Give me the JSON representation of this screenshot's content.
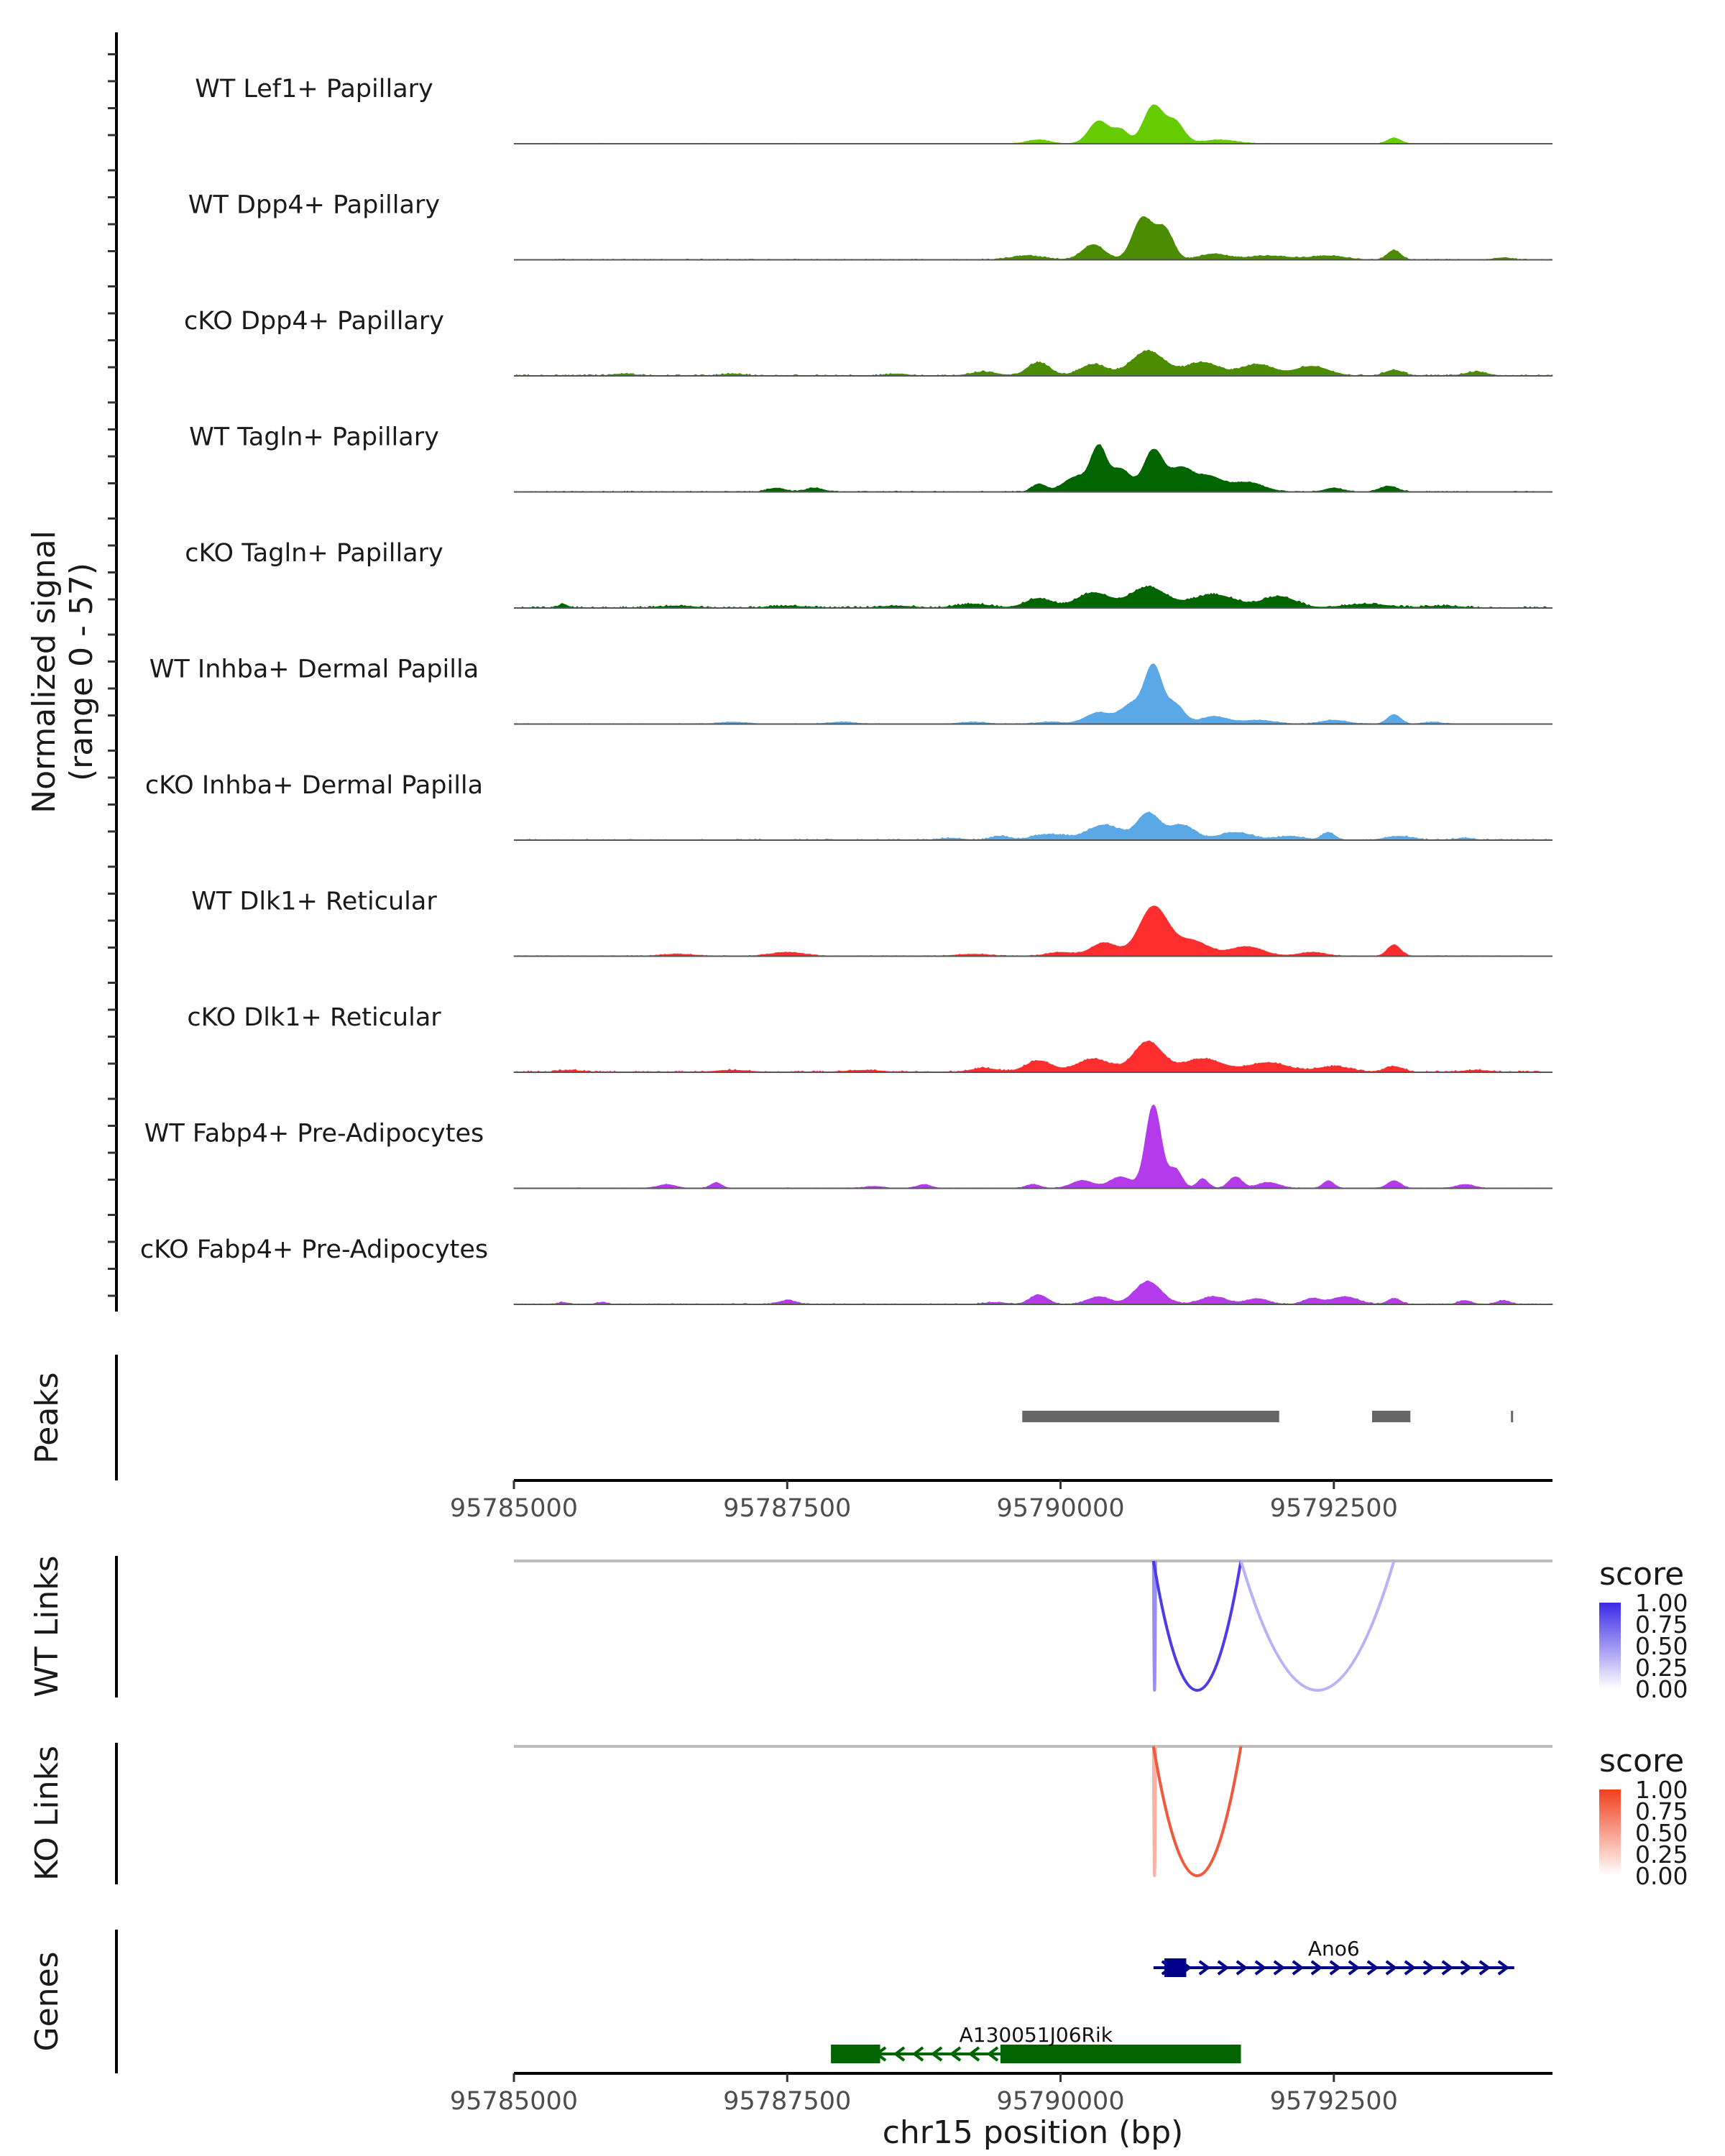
{
  "colors": {
    "Lef1": "#66CC00",
    "Dpp4": "#4C8C00",
    "Tagln": "#006400",
    "Inhba": "#5BA8E6",
    "Dlk1": "#FF2E2E",
    "Fabp4": "#B33BEB",
    "peak": "#666666",
    "wt_link": "#3B2AE6",
    "ko_link": "#F0401E",
    "gene_ano6": "#00008B",
    "gene_rik": "#006400"
  },
  "chart_data": {
    "type": "area",
    "title": "",
    "ylabel": "Normalized signal",
    "ylabel_range": "(range 0 - 57)",
    "xlabel": "chr15 position (bp)",
    "xlim": [
      95785000,
      95794500
    ],
    "ylim": [
      0,
      57
    ],
    "x_ticks": [
      95785000,
      95787500,
      95790000,
      95792500
    ],
    "tracks": [
      {
        "name": "WT Lef1+ Papillary",
        "color_key": "Lef1",
        "noise": 0.25,
        "peaks": [
          [
            95789800,
            2,
            100
          ],
          [
            95790350,
            12,
            90
          ],
          [
            95790550,
            7,
            70
          ],
          [
            95790850,
            20,
            90
          ],
          [
            95791050,
            11,
            80
          ],
          [
            95791450,
            2,
            150
          ],
          [
            95793050,
            3,
            60
          ]
        ]
      },
      {
        "name": "WT Dpp4+ Papillary",
        "color_key": "Dpp4",
        "noise": 0.5,
        "peaks": [
          [
            95789700,
            2,
            150
          ],
          [
            95790300,
            8,
            100
          ],
          [
            95790750,
            22,
            90
          ],
          [
            95790950,
            16,
            80
          ],
          [
            95791400,
            3,
            120
          ],
          [
            95791900,
            2,
            200
          ],
          [
            95792450,
            2,
            150
          ],
          [
            95793050,
            5,
            60
          ],
          [
            95794050,
            1,
            80
          ]
        ]
      },
      {
        "name": "cKO Dpp4+ Papillary",
        "color_key": "Dpp4",
        "noise": 0.8,
        "peaks": [
          [
            95786000,
            1,
            100
          ],
          [
            95787000,
            1,
            100
          ],
          [
            95788500,
            1,
            100
          ],
          [
            95789300,
            2,
            120
          ],
          [
            95789800,
            7,
            100
          ],
          [
            95790300,
            6,
            120
          ],
          [
            95790800,
            13,
            150
          ],
          [
            95791300,
            7,
            150
          ],
          [
            95791800,
            6,
            150
          ],
          [
            95792300,
            5,
            150
          ],
          [
            95793050,
            3,
            80
          ],
          [
            95793800,
            2,
            100
          ]
        ]
      },
      {
        "name": "WT Tagln+ Papillary",
        "color_key": "Tagln",
        "noise": 0.5,
        "peaks": [
          [
            95787400,
            2,
            80
          ],
          [
            95787750,
            2,
            80
          ],
          [
            95789800,
            4,
            60
          ],
          [
            95790150,
            8,
            120
          ],
          [
            95790350,
            22,
            70
          ],
          [
            95790550,
            12,
            90
          ],
          [
            95790850,
            22,
            90
          ],
          [
            95791100,
            12,
            100
          ],
          [
            95791350,
            8,
            120
          ],
          [
            95791700,
            5,
            150
          ],
          [
            95792500,
            2,
            80
          ],
          [
            95793000,
            3,
            80
          ]
        ]
      },
      {
        "name": "cKO Tagln+ Papillary",
        "color_key": "Tagln",
        "noise": 0.9,
        "peaks": [
          [
            95785450,
            2,
            40
          ],
          [
            95786500,
            1,
            150
          ],
          [
            95787500,
            1,
            150
          ],
          [
            95788500,
            1,
            150
          ],
          [
            95789200,
            2,
            150
          ],
          [
            95789800,
            5,
            120
          ],
          [
            95790300,
            8,
            150
          ],
          [
            95790800,
            11,
            160
          ],
          [
            95791400,
            7,
            200
          ],
          [
            95792000,
            6,
            150
          ],
          [
            95792800,
            2,
            200
          ],
          [
            95793500,
            1,
            150
          ]
        ]
      },
      {
        "name": "WT Inhba+ Dermal Papilla",
        "color_key": "Inhba",
        "noise": 0.35,
        "peaks": [
          [
            95787000,
            1,
            120
          ],
          [
            95788000,
            1,
            120
          ],
          [
            95789200,
            1,
            120
          ],
          [
            95789900,
            1,
            120
          ],
          [
            95790350,
            6,
            120
          ],
          [
            95790650,
            10,
            100
          ],
          [
            95790850,
            30,
            80
          ],
          [
            95791050,
            10,
            80
          ],
          [
            95791400,
            4,
            120
          ],
          [
            95791800,
            2,
            150
          ],
          [
            95792500,
            2,
            120
          ],
          [
            95793050,
            5,
            60
          ],
          [
            95793400,
            1,
            80
          ]
        ]
      },
      {
        "name": "cKO Inhba+ Dermal Papilla",
        "color_key": "Inhba",
        "noise": 0.7,
        "peaks": [
          [
            95789000,
            1,
            100
          ],
          [
            95789450,
            2,
            80
          ],
          [
            95789900,
            3,
            150
          ],
          [
            95790400,
            8,
            150
          ],
          [
            95790800,
            14,
            100
          ],
          [
            95791100,
            8,
            120
          ],
          [
            95791600,
            4,
            150
          ],
          [
            95792100,
            2,
            120
          ],
          [
            95792450,
            4,
            60
          ],
          [
            95793100,
            2,
            120
          ],
          [
            95793700,
            1,
            80
          ]
        ]
      },
      {
        "name": "WT Dlk1+ Reticular",
        "color_key": "Dlk1",
        "noise": 0.4,
        "peaks": [
          [
            95786500,
            1,
            150
          ],
          [
            95787500,
            2,
            150
          ],
          [
            95789200,
            1,
            150
          ],
          [
            95790000,
            2,
            120
          ],
          [
            95790400,
            7,
            120
          ],
          [
            95790850,
            26,
            130
          ],
          [
            95791200,
            8,
            150
          ],
          [
            95791700,
            5,
            150
          ],
          [
            95792300,
            2,
            120
          ],
          [
            95793050,
            6,
            60
          ]
        ]
      },
      {
        "name": "cKO Dlk1+ Reticular",
        "color_key": "Dlk1",
        "noise": 0.8,
        "peaks": [
          [
            95785500,
            1,
            100
          ],
          [
            95787000,
            1,
            150
          ],
          [
            95788200,
            1,
            150
          ],
          [
            95789300,
            2,
            120
          ],
          [
            95789800,
            6,
            120
          ],
          [
            95790300,
            7,
            150
          ],
          [
            95790800,
            16,
            130
          ],
          [
            95791300,
            7,
            180
          ],
          [
            95791900,
            5,
            180
          ],
          [
            95792500,
            3,
            150
          ],
          [
            95793050,
            3,
            80
          ],
          [
            95793800,
            1,
            120
          ]
        ]
      },
      {
        "name": "WT Fabp4+ Pre-Adipocytes",
        "color_key": "Fabp4",
        "noise": 0.3,
        "peaks": [
          [
            95786400,
            2,
            80
          ],
          [
            95786850,
            3,
            50
          ],
          [
            95788300,
            1,
            80
          ],
          [
            95788750,
            2,
            60
          ],
          [
            95789750,
            2,
            60
          ],
          [
            95790200,
            4,
            100
          ],
          [
            95790550,
            6,
            100
          ],
          [
            95790850,
            44,
            70
          ],
          [
            95791050,
            10,
            60
          ],
          [
            95791300,
            5,
            50
          ],
          [
            95791600,
            6,
            60
          ],
          [
            95791900,
            3,
            100
          ],
          [
            95792450,
            4,
            50
          ],
          [
            95793050,
            4,
            60
          ],
          [
            95793700,
            2,
            80
          ]
        ]
      },
      {
        "name": "cKO Fabp4+ Pre-Adipocytes",
        "color_key": "Fabp4",
        "noise": 0.5,
        "peaks": [
          [
            95785450,
            1,
            40
          ],
          [
            95785800,
            1,
            50
          ],
          [
            95787500,
            2,
            80
          ],
          [
            95789400,
            1,
            100
          ],
          [
            95789800,
            5,
            80
          ],
          [
            95790350,
            4,
            100
          ],
          [
            95790800,
            12,
            120
          ],
          [
            95791400,
            4,
            120
          ],
          [
            95791800,
            3,
            100
          ],
          [
            95792300,
            3,
            80
          ],
          [
            95792600,
            4,
            120
          ],
          [
            95793050,
            3,
            60
          ],
          [
            95793700,
            2,
            60
          ],
          [
            95794050,
            2,
            60
          ]
        ]
      }
    ],
    "peaks_track": {
      "label": "Peaks",
      "regions": [
        [
          95789650,
          95792000
        ],
        [
          95792850,
          95793200
        ],
        [
          95794120,
          95794135
        ]
      ]
    },
    "wt_links": {
      "label": "WT Links",
      "legend_title": "score",
      "legend_ticks": [
        "1.00",
        "0.75",
        "0.50",
        "0.25",
        "0.00"
      ],
      "links": [
        {
          "start": 95790850,
          "end": 95790870,
          "score": 0.45
        },
        {
          "start": 95790850,
          "end": 95791650,
          "score": 0.9
        },
        {
          "start": 95791650,
          "end": 95793050,
          "score": 0.25
        }
      ]
    },
    "ko_links": {
      "label": "KO Links",
      "legend_title": "score",
      "legend_ticks": [
        "1.00",
        "0.75",
        "0.50",
        "0.25",
        "0.00"
      ],
      "links": [
        {
          "start": 95790850,
          "end": 95790870,
          "score": 0.3
        },
        {
          "start": 95790850,
          "end": 95791650,
          "score": 0.85
        }
      ]
    },
    "genes": {
      "label": "Genes",
      "items": [
        {
          "name": "Ano6",
          "start": 95790850,
          "end": 95794150,
          "strand": "+",
          "color_key": "gene_ano6",
          "exons": [
            [
              95790950,
              95791150
            ]
          ]
        },
        {
          "name": "A130051J06Rik",
          "start": 95787900,
          "end": 95791650,
          "strand": "-",
          "color_key": "gene_rik",
          "exons": [
            [
              95787900,
              95788350
            ],
            [
              95789450,
              95791650
            ]
          ]
        }
      ]
    }
  }
}
